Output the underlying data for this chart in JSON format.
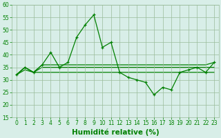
{
  "x": [
    0,
    1,
    2,
    3,
    4,
    5,
    6,
    7,
    8,
    9,
    10,
    11,
    12,
    13,
    14,
    15,
    16,
    17,
    18,
    19,
    20,
    21,
    22,
    23
  ],
  "y_main": [
    32,
    35,
    33,
    36,
    41,
    35,
    37,
    47,
    52,
    56,
    43,
    45,
    33,
    31,
    30,
    29,
    24,
    27,
    26,
    33,
    34,
    35,
    33,
    37
  ],
  "y_line1": [
    32,
    34,
    33,
    33,
    33,
    33,
    33,
    33,
    33,
    33,
    33,
    33,
    33,
    33,
    33,
    33,
    33,
    33,
    33,
    33,
    33,
    33,
    33,
    33
  ],
  "y_line2": [
    32,
    35,
    33,
    35,
    35,
    35,
    35,
    35,
    35,
    35,
    35,
    35,
    35,
    35,
    35,
    35,
    35,
    35,
    35,
    35,
    35,
    35,
    35,
    35
  ],
  "y_line3": [
    32,
    35,
    33,
    36,
    36,
    36,
    36,
    36,
    36,
    36,
    36,
    36,
    36,
    36,
    36,
    36,
    36,
    36,
    36,
    36,
    36,
    36,
    36,
    37
  ],
  "line_color": "#008000",
  "bg_color": "#d8eee8",
  "grid_color": "#99bb99",
  "ylim": [
    15,
    60
  ],
  "yticks": [
    15,
    20,
    25,
    30,
    35,
    40,
    45,
    50,
    55,
    60
  ],
  "xlim": [
    -0.5,
    23.5
  ],
  "xlabel": "Humidité relative (%)",
  "xlabel_fontsize": 7.5,
  "tick_fontsize": 5.5
}
